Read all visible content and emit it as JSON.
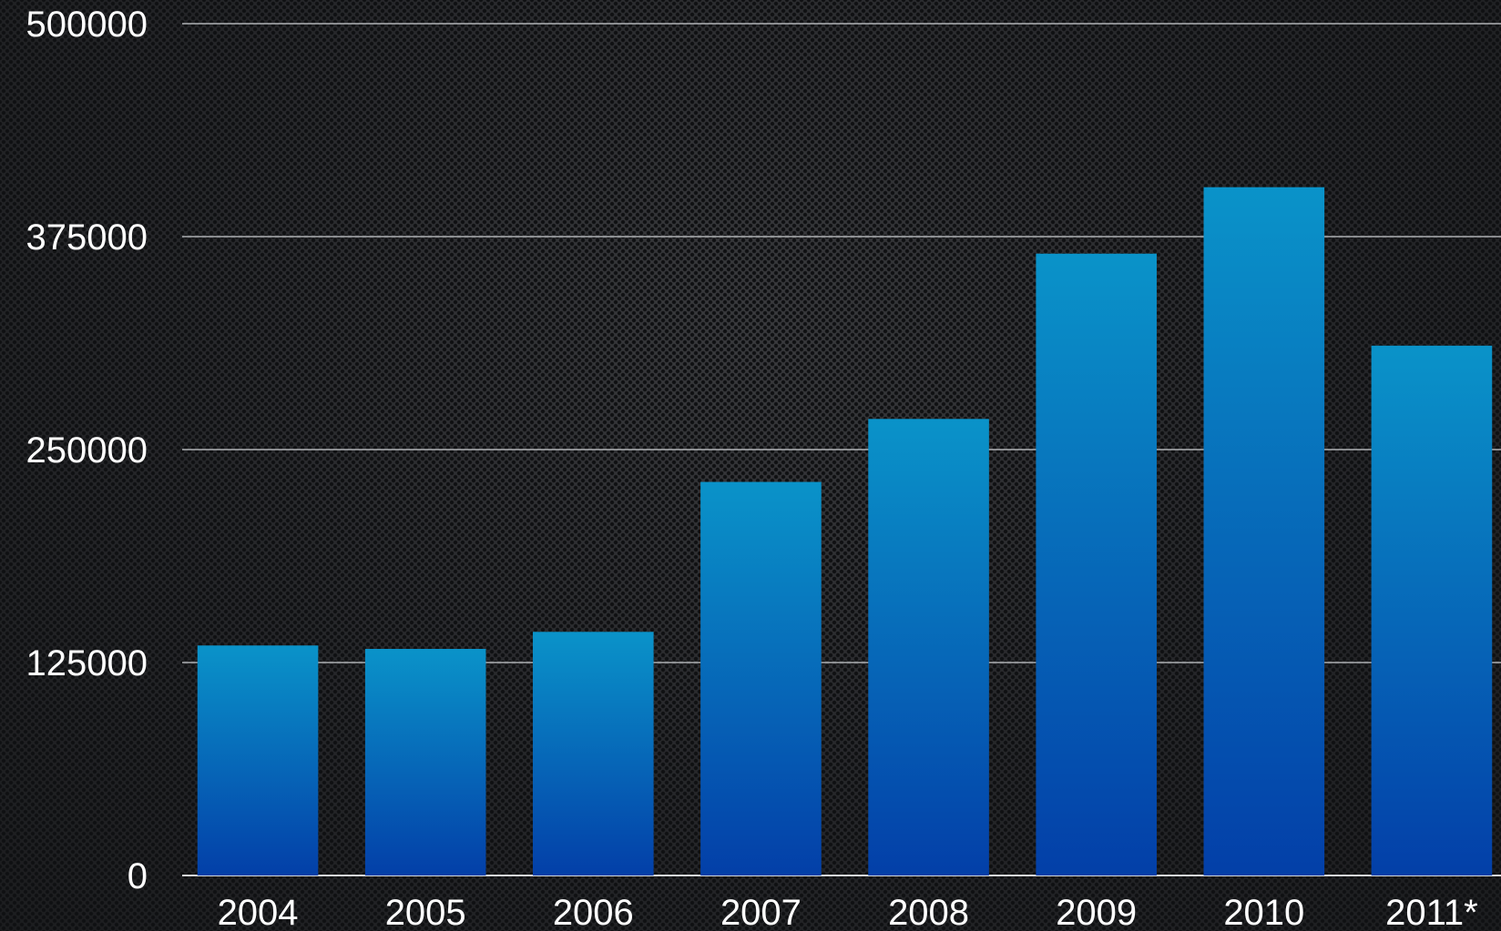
{
  "chart_data": {
    "type": "bar",
    "title": "",
    "xlabel": "",
    "ylabel": "",
    "categories": [
      "2004",
      "2005",
      "2006",
      "2007",
      "2008",
      "2009",
      "2010",
      "2011*"
    ],
    "values": [
      135000,
      133000,
      143000,
      231000,
      268000,
      365000,
      404000,
      311000
    ],
    "ylim": [
      0,
      500000
    ],
    "yticks": [
      0,
      125000,
      250000,
      375000,
      500000
    ],
    "ytick_labels": [
      "0",
      "125000",
      "250000",
      "375000",
      "500000"
    ],
    "grid": true,
    "legend": "none",
    "colors": {
      "bar_top": "#0a93c9",
      "bar_bottom": "#033fa8",
      "grid": "#c9cccf",
      "text": "#ffffff"
    }
  }
}
